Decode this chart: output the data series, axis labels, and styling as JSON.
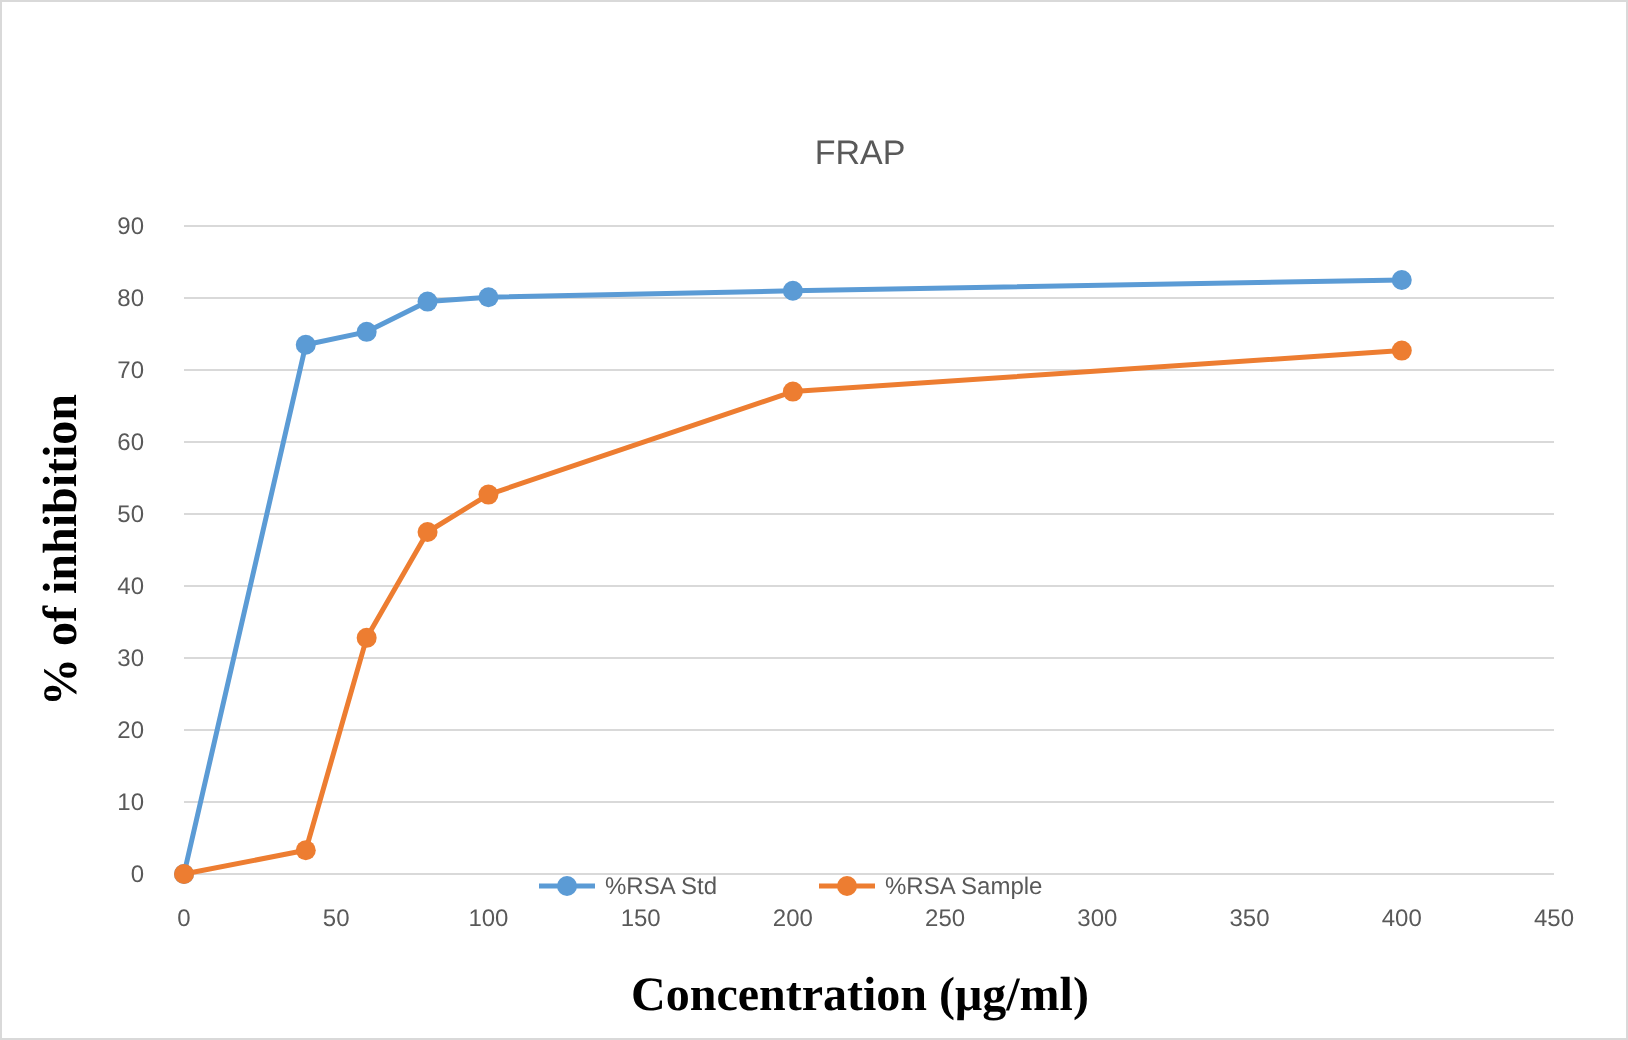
{
  "chart_data": {
    "type": "line",
    "title": "FRAP",
    "xlabel": "Concentration (μg/ml)",
    "ylabel": "% of inhibition",
    "xlim": [
      0,
      450
    ],
    "xticks": [
      0,
      50,
      100,
      150,
      200,
      250,
      300,
      350,
      400,
      450
    ],
    "ylim": [
      0,
      90
    ],
    "yticks": [
      0,
      10,
      20,
      30,
      40,
      50,
      60,
      70,
      80,
      90
    ],
    "grid": "y",
    "legend": "bottom",
    "marker": "circle",
    "x": [
      0,
      40,
      60,
      80,
      100,
      200,
      400
    ],
    "series": [
      {
        "name": "%RSA Std",
        "color": "#5b9bd5",
        "values": [
          0,
          73.5,
          75.3,
          79.5,
          80.1,
          81,
          82.5
        ]
      },
      {
        "name": "%RSA Sample",
        "color": "#ed7d31",
        "values": [
          0,
          3.3,
          32.8,
          47.5,
          52.7,
          67,
          72.7
        ]
      }
    ]
  }
}
